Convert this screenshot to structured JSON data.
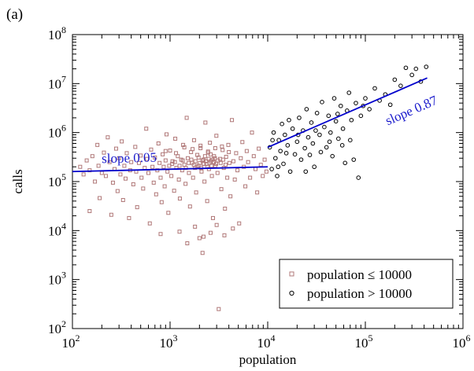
{
  "panel_label": "(a)",
  "chart_data": {
    "type": "scatter",
    "xlabel": "population",
    "ylabel": "calls",
    "xscale": "log",
    "yscale": "log",
    "xlim": [
      100,
      1000000
    ],
    "ylim": [
      100,
      100000000
    ],
    "x_ticks": [
      {
        "value": 100,
        "base": "10",
        "exp": "2"
      },
      {
        "value": 1000,
        "base": "10",
        "exp": "3"
      },
      {
        "value": 10000,
        "base": "10",
        "exp": "4"
      },
      {
        "value": 100000,
        "base": "10",
        "exp": "5"
      },
      {
        "value": 1000000,
        "base": "10",
        "exp": "6"
      }
    ],
    "y_ticks": [
      {
        "value": 100,
        "base": "10",
        "exp": "2"
      },
      {
        "value": 1000,
        "base": "10",
        "exp": "3"
      },
      {
        "value": 10000,
        "base": "10",
        "exp": "4"
      },
      {
        "value": 100000,
        "base": "10",
        "exp": "5"
      },
      {
        "value": 1000000,
        "base": "10",
        "exp": "6"
      },
      {
        "value": 10000000,
        "base": "10",
        "exp": "7"
      },
      {
        "value": 100000000,
        "base": "10",
        "exp": "8"
      }
    ],
    "grid": false,
    "legend_position": "bottom-right",
    "series": [
      {
        "name": "population ≤ 10000",
        "marker": "square",
        "color": "#b07878",
        "points": [
          [
            120,
            200000
          ],
          [
            130,
            140000
          ],
          [
            140,
            270000
          ],
          [
            150,
            170000
          ],
          [
            150,
            25000
          ],
          [
            160,
            330000
          ],
          [
            170,
            100000
          ],
          [
            180,
            560000
          ],
          [
            185,
            210000
          ],
          [
            190,
            46000
          ],
          [
            200,
            150000
          ],
          [
            210,
            390000
          ],
          [
            220,
            130000
          ],
          [
            230,
            800000
          ],
          [
            240,
            250000
          ],
          [
            250,
            21000
          ],
          [
            260,
            95000
          ],
          [
            270,
            180000
          ],
          [
            280,
            470000
          ],
          [
            290,
            64000
          ],
          [
            300,
            300000
          ],
          [
            310,
            140000
          ],
          [
            320,
            660000
          ],
          [
            330,
            42000
          ],
          [
            340,
            210000
          ],
          [
            350,
            115000
          ],
          [
            360,
            380000
          ],
          [
            380,
            18000
          ],
          [
            390,
            170000
          ],
          [
            400,
            250000
          ],
          [
            420,
            88000
          ],
          [
            440,
            510000
          ],
          [
            450,
            160000
          ],
          [
            460,
            30000
          ],
          [
            480,
            240000
          ],
          [
            500,
            340000
          ],
          [
            510,
            120000
          ],
          [
            530,
            72000
          ],
          [
            550,
            190000
          ],
          [
            570,
            1200000
          ],
          [
            580,
            290000
          ],
          [
            600,
            150000
          ],
          [
            620,
            14000
          ],
          [
            640,
            450000
          ],
          [
            660,
            200000
          ],
          [
            680,
            95000
          ],
          [
            700,
            310000
          ],
          [
            720,
            55000
          ],
          [
            740,
            170000
          ],
          [
            760,
            600000
          ],
          [
            780,
            240000
          ],
          [
            800,
            120000
          ],
          [
            820,
            38000
          ],
          [
            840,
            360000
          ],
          [
            860,
            200000
          ],
          [
            880,
            80000
          ],
          [
            900,
            270000
          ],
          [
            920,
            920000
          ],
          [
            940,
            160000
          ],
          [
            960,
            23000
          ],
          [
            980,
            210000
          ],
          [
            1000,
            430000
          ],
          [
            1030,
            130000
          ],
          [
            1060,
            260000
          ],
          [
            1100,
            65000
          ],
          [
            1130,
            750000
          ],
          [
            1160,
            190000
          ],
          [
            1200,
            330000
          ],
          [
            1230,
            110000
          ],
          [
            1260,
            45000
          ],
          [
            1300,
            280000
          ],
          [
            1330,
            170000
          ],
          [
            1360,
            560000
          ],
          [
            1400,
            220000
          ],
          [
            1440,
            90000
          ],
          [
            1480,
            2000000
          ],
          [
            1520,
            300000
          ],
          [
            1560,
            150000
          ],
          [
            1600,
            31000
          ],
          [
            1640,
            400000
          ],
          [
            1680,
            240000
          ],
          [
            1720,
            120000
          ],
          [
            1760,
            700000
          ],
          [
            1800,
            190000
          ],
          [
            1850,
            60000
          ],
          [
            1900,
            350000
          ],
          [
            1950,
            210000
          ],
          [
            2000,
            7000
          ],
          [
            2050,
            480000
          ],
          [
            2100,
            160000
          ],
          [
            2150,
            3500
          ],
          [
            2200,
            280000
          ],
          [
            2250,
            100000
          ],
          [
            2300,
            1600000
          ],
          [
            2350,
            230000
          ],
          [
            2400,
            40000
          ],
          [
            2450,
            390000
          ],
          [
            2500,
            180000
          ],
          [
            2560,
            620000
          ],
          [
            2620,
            260000
          ],
          [
            2680,
            130000
          ],
          [
            2750,
            18000
          ],
          [
            2820,
            330000
          ],
          [
            2900,
            210000
          ],
          [
            2980,
            860000
          ],
          [
            3060,
            150000
          ],
          [
            3150,
            250
          ],
          [
            3250,
            290000
          ],
          [
            3350,
            70000
          ],
          [
            3450,
            440000
          ],
          [
            3550,
            190000
          ],
          [
            3650,
            28000
          ],
          [
            3750,
            320000
          ],
          [
            3850,
            120000
          ],
          [
            3950,
            560000
          ],
          [
            4050,
            240000
          ],
          [
            4150,
            50000
          ],
          [
            4300,
            1800000
          ],
          [
            4450,
            260000
          ],
          [
            4600,
            110000
          ],
          [
            4750,
            380000
          ],
          [
            4900,
            170000
          ],
          [
            5100,
            14000
          ],
          [
            5300,
            300000
          ],
          [
            5500,
            640000
          ],
          [
            5700,
            200000
          ],
          [
            5900,
            80000
          ],
          [
            6100,
            420000
          ],
          [
            6300,
            250000
          ],
          [
            6600,
            120000
          ],
          [
            6900,
            1000000
          ],
          [
            7200,
            330000
          ],
          [
            7500,
            180000
          ],
          [
            7800,
            60000
          ],
          [
            8100,
            470000
          ],
          [
            8500,
            220000
          ],
          [
            8900,
            130000
          ],
          [
            9300,
            280000
          ],
          [
            9700,
            160000
          ],
          [
            1050,
            230000
          ],
          [
            1120,
            250000
          ],
          [
            1250,
            210000
          ],
          [
            1350,
            270000
          ],
          [
            1450,
            190000
          ],
          [
            1550,
            240000
          ],
          [
            1650,
            280000
          ],
          [
            1750,
            220000
          ],
          [
            1820,
            260000
          ],
          [
            1880,
            200000
          ],
          [
            1960,
            310000
          ],
          [
            2020,
            240000
          ],
          [
            2080,
            190000
          ],
          [
            2140,
            270000
          ],
          [
            2220,
            230000
          ],
          [
            2280,
            330000
          ],
          [
            2340,
            260000
          ],
          [
            2420,
            200000
          ],
          [
            2480,
            290000
          ],
          [
            2540,
            240000
          ],
          [
            2600,
            360000
          ],
          [
            2660,
            210000
          ],
          [
            2730,
            280000
          ],
          [
            2800,
            250000
          ],
          [
            2880,
            300000
          ],
          [
            2960,
            230000
          ],
          [
            3100,
            270000
          ],
          [
            3300,
            240000
          ],
          [
            3500,
            280000
          ],
          [
            3700,
            220000
          ],
          [
            900,
            420000
          ],
          [
            1150,
            380000
          ],
          [
            1400,
            500000
          ],
          [
            1700,
            460000
          ],
          [
            2050,
            540000
          ],
          [
            2450,
            410000
          ],
          [
            2900,
            480000
          ],
          [
            3400,
            520000
          ],
          [
            4000,
            400000
          ],
          [
            800,
            8500
          ],
          [
            1250,
            9500
          ],
          [
            1500,
            5500
          ],
          [
            1800,
            12000
          ],
          [
            2200,
            7500
          ],
          [
            2600,
            9000
          ],
          [
            3000,
            13000
          ],
          [
            3600,
            8000
          ],
          [
            4400,
            11000
          ]
        ]
      },
      {
        "name": "population > 10000",
        "marker": "circle",
        "color": "#000000",
        "points": [
          [
            10500,
            500000
          ],
          [
            11000,
            180000
          ],
          [
            11500,
            1000000
          ],
          [
            12000,
            300000
          ],
          [
            12500,
            130000
          ],
          [
            13000,
            700000
          ],
          [
            13500,
            420000
          ],
          [
            14000,
            1500000
          ],
          [
            14500,
            230000
          ],
          [
            15000,
            900000
          ],
          [
            16000,
            550000
          ],
          [
            17000,
            160000
          ],
          [
            18000,
            1200000
          ],
          [
            19000,
            360000
          ],
          [
            20000,
            650000
          ],
          [
            21000,
            2000000
          ],
          [
            22000,
            280000
          ],
          [
            23000,
            1100000
          ],
          [
            24000,
            480000
          ],
          [
            25000,
            3000000
          ],
          [
            26000,
            800000
          ],
          [
            27000,
            350000
          ],
          [
            28000,
            1600000
          ],
          [
            29000,
            600000
          ],
          [
            30000,
            200000
          ],
          [
            32000,
            2500000
          ],
          [
            34000,
            900000
          ],
          [
            36000,
            4200000
          ],
          [
            38000,
            1300000
          ],
          [
            40000,
            500000
          ],
          [
            42000,
            2200000
          ],
          [
            44000,
            1000000
          ],
          [
            46000,
            330000
          ],
          [
            48000,
            5000000
          ],
          [
            50000,
            1700000
          ],
          [
            53000,
            750000
          ],
          [
            56000,
            3500000
          ],
          [
            59000,
            1200000
          ],
          [
            62000,
            240000
          ],
          [
            65000,
            2800000
          ],
          [
            68000,
            6500000
          ],
          [
            72000,
            1800000
          ],
          [
            76000,
            280000
          ],
          [
            80000,
            4000000
          ],
          [
            85000,
            120000
          ],
          [
            90000,
            2200000
          ],
          [
            100000,
            5000000
          ],
          [
            110000,
            3000000
          ],
          [
            125000,
            8000000
          ],
          [
            140000,
            4500000
          ],
          [
            160000,
            6000000
          ],
          [
            180000,
            3700000
          ],
          [
            200000,
            12000000
          ],
          [
            230000,
            9000000
          ],
          [
            260000,
            21000000
          ],
          [
            300000,
            15000000
          ],
          [
            330000,
            20000000
          ],
          [
            370000,
            11000000
          ],
          [
            420000,
            22000000
          ],
          [
            11200,
            700000
          ],
          [
            12800,
            200000
          ],
          [
            15500,
            380000
          ],
          [
            16500,
            1800000
          ],
          [
            20500,
            900000
          ],
          [
            24500,
            160000
          ],
          [
            31000,
            1100000
          ],
          [
            35000,
            400000
          ],
          [
            43000,
            650000
          ],
          [
            52000,
            2400000
          ],
          [
            58000,
            550000
          ],
          [
            70000,
            700000
          ],
          [
            95000,
            3500000
          ]
        ]
      }
    ],
    "fit_lines": [
      {
        "label": "slope 0.05",
        "slope": 0.05,
        "from": [
          100,
          160000
        ],
        "to": [
          10000,
          200000
        ],
        "color": "#0000cc"
      },
      {
        "label": "slope 0.87",
        "slope": 0.87,
        "from": [
          10000,
          500000
        ],
        "to": [
          430000,
          13000000
        ],
        "color": "#0000cc"
      }
    ]
  }
}
